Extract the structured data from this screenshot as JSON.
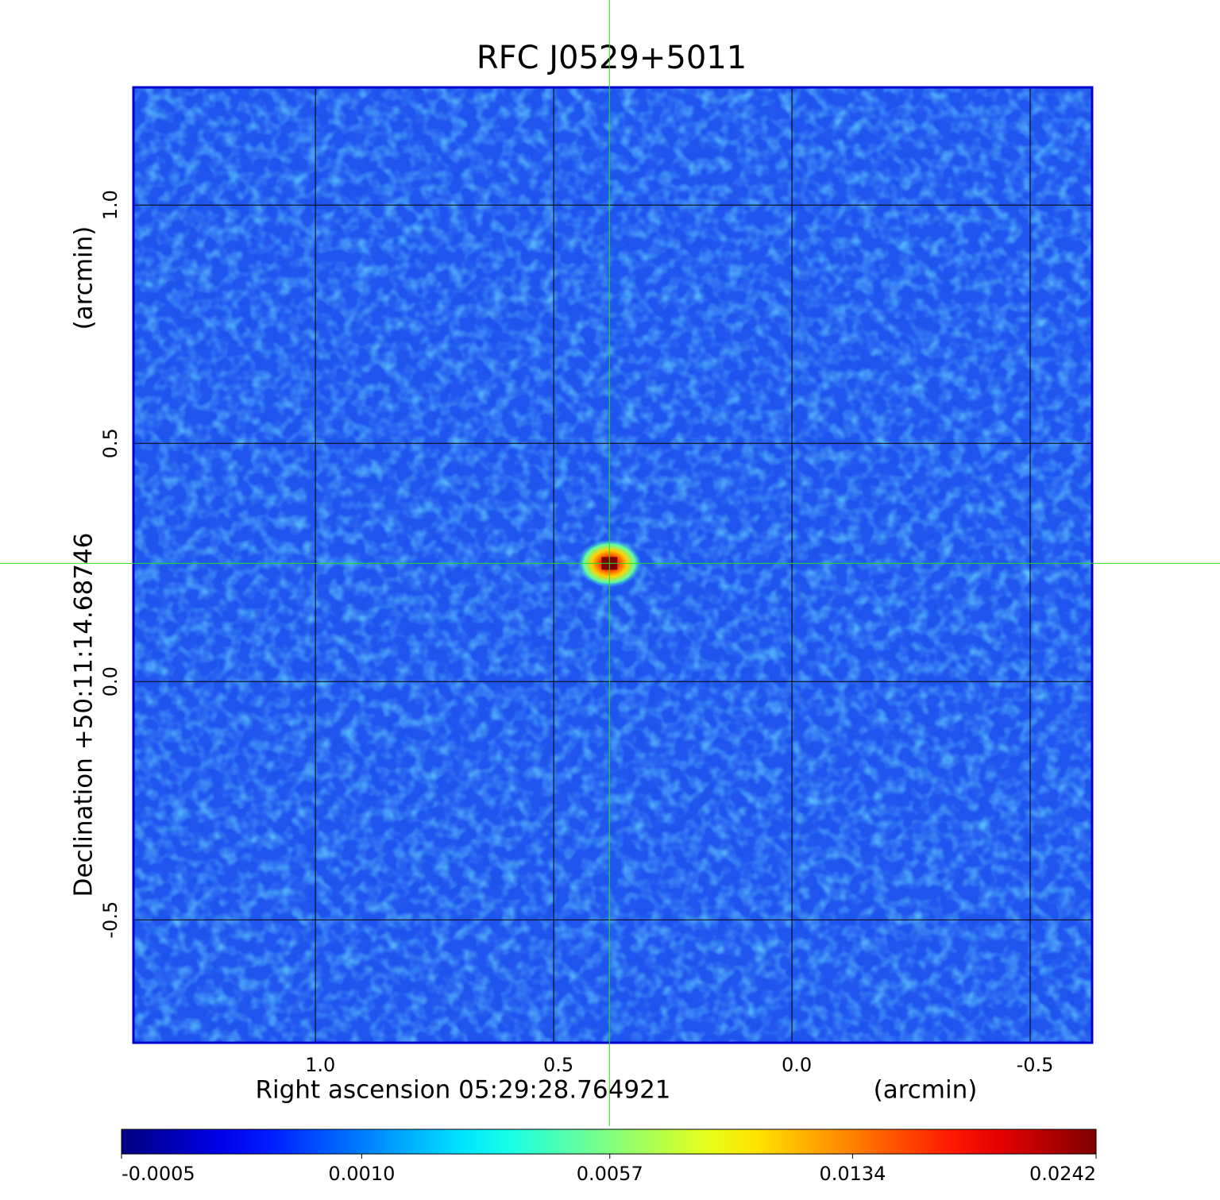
{
  "chart_data": {
    "type": "image",
    "title": "RFC J0529+5011",
    "title_color": "#0000cc",
    "x_label": "Right ascension  05:29:28.764921",
    "x_unit": "(arcmin)",
    "y_label": "Declination  +50:11:14.68746",
    "y_unit": "(arcmin)",
    "xlim": [
      1.382,
      -0.63
    ],
    "ylim": [
      -0.758,
      1.247
    ],
    "xticks": [
      {
        "value": 1,
        "label": "1.0"
      },
      {
        "value": 0.5,
        "label": "0.5"
      },
      {
        "value": 0,
        "label": "0.0"
      },
      {
        "value": -0.5,
        "label": "-0.5"
      }
    ],
    "yticks": [
      {
        "value": 1,
        "label": "1.0"
      },
      {
        "value": 0.5,
        "label": "0.5"
      },
      {
        "value": 0,
        "label": "0.0"
      },
      {
        "value": -0.5,
        "label": "-0.5"
      }
    ],
    "grid": true,
    "colormap": "jet",
    "color_scale": "sqrt",
    "clim": [
      -0.0005,
      0.0242
    ],
    "cticks": [
      -0.0005,
      {
        "value": 0.001,
        "label": "0.0010"
      },
      0.0057,
      0.0134,
      0.0242
    ],
    "source": {
      "x": 0.383,
      "y": 0.248,
      "value": 0.0242
    },
    "crosshair_color": "#22dd22"
  }
}
